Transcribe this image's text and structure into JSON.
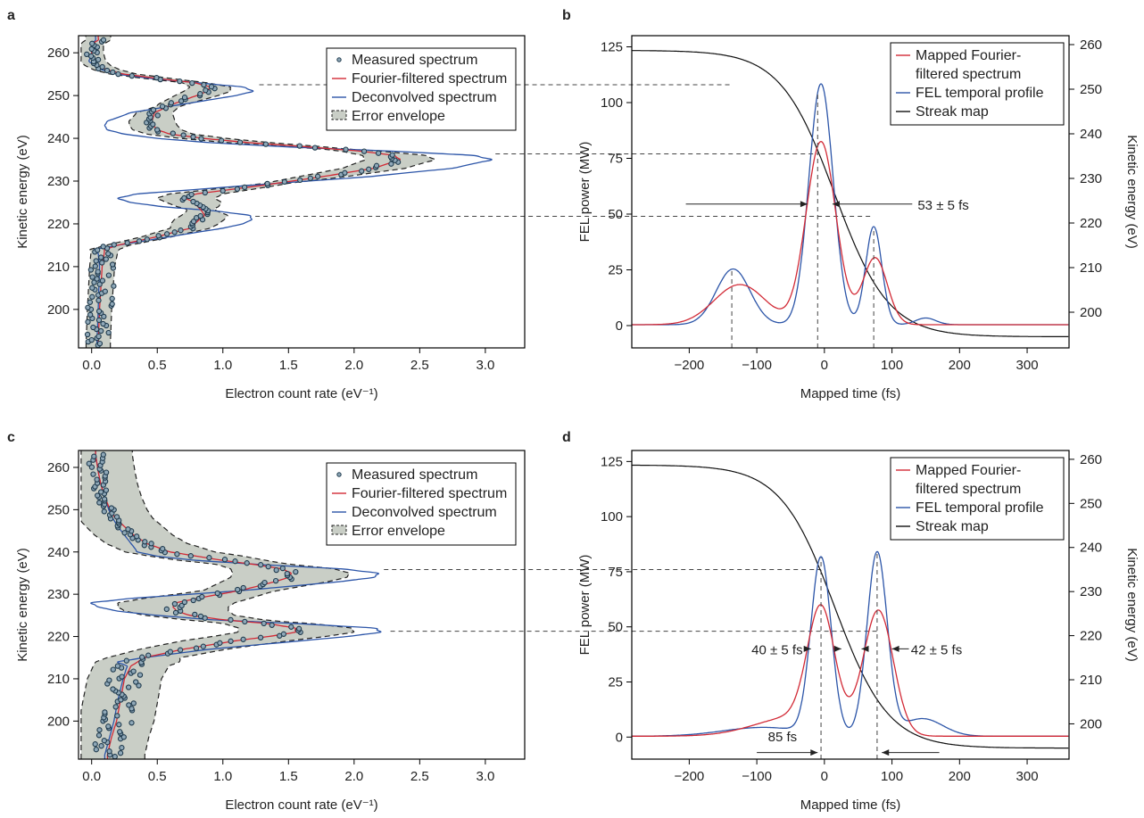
{
  "figure": {
    "panel_labels": [
      "a",
      "b",
      "c",
      "d"
    ]
  },
  "colors": {
    "measured": "#1f3a4d",
    "fourier": "#d22a36",
    "deconvolved": "#2c55a8",
    "envelope_fill": "#c9cec6",
    "streak": "#111111",
    "guide": "#444444"
  },
  "chart_data": [
    {
      "panel": "a",
      "type": "scatter",
      "xlabel": "Electron count rate (eV⁻¹)",
      "ylabel": "Kinetic energy (eV)",
      "xlim": [
        -0.1,
        3.3
      ],
      "ylim": [
        191,
        264
      ],
      "xticks": [
        0.0,
        0.5,
        1.0,
        1.5,
        2.0,
        2.5,
        3.0
      ],
      "xtick_labels": [
        "0.0",
        "0.5",
        "1.0",
        "1.5",
        "2.0",
        "2.5",
        "3.0"
      ],
      "yticks": [
        200,
        210,
        220,
        230,
        240,
        250,
        260
      ],
      "ytick_labels": [
        "200",
        "210",
        "220",
        "230",
        "240",
        "250",
        "260"
      ],
      "legend": [
        "Measured spectrum",
        "Fourier-filtered spectrum",
        "Deconvolved spectrum",
        "Error envelope"
      ],
      "legend_position": "top-right",
      "fourier": {
        "base": [
          [
            192,
            0.05
          ],
          [
            200,
            0.06
          ],
          [
            210,
            0.08
          ],
          [
            214,
            0.1
          ],
          [
            215,
            0.2
          ],
          [
            217,
            0.5
          ],
          [
            219,
            0.75
          ],
          [
            221,
            0.82
          ],
          [
            222,
            0.86
          ],
          [
            223,
            0.84
          ],
          [
            225,
            0.78
          ],
          [
            226,
            0.72
          ],
          [
            227,
            0.8
          ],
          [
            229,
            1.3
          ],
          [
            231,
            1.75
          ],
          [
            233,
            2.15
          ],
          [
            235,
            2.35
          ],
          [
            236,
            2.3
          ],
          [
            237,
            2.05
          ],
          [
            238,
            1.65
          ],
          [
            239,
            1.2
          ],
          [
            240,
            0.85
          ],
          [
            241,
            0.6
          ],
          [
            242,
            0.5
          ],
          [
            243,
            0.47
          ],
          [
            244,
            0.46
          ],
          [
            246,
            0.48
          ],
          [
            248,
            0.62
          ],
          [
            250,
            0.8
          ],
          [
            251,
            0.88
          ],
          [
            252,
            0.9
          ],
          [
            253,
            0.78
          ],
          [
            254,
            0.5
          ],
          [
            255,
            0.25
          ],
          [
            256,
            0.12
          ],
          [
            257,
            0.05
          ],
          [
            258,
            0.01
          ],
          [
            260,
            0.0
          ],
          [
            262,
            0.0
          ],
          [
            263,
            0.05
          ]
        ]
      },
      "deconvolved": {
        "base": [
          [
            192,
            0.04
          ],
          [
            200,
            0.05
          ],
          [
            210,
            0.06
          ],
          [
            213,
            0.05
          ],
          [
            214,
            0.02
          ],
          [
            215,
            0.2
          ],
          [
            217,
            0.6
          ],
          [
            219,
            1.0
          ],
          [
            220,
            1.15
          ],
          [
            221,
            1.22
          ],
          [
            222,
            1.2
          ],
          [
            223,
            0.95
          ],
          [
            224,
            0.55
          ],
          [
            225,
            0.3
          ],
          [
            226,
            0.2
          ],
          [
            227,
            0.35
          ],
          [
            229,
            1.2
          ],
          [
            231,
            2.1
          ],
          [
            233,
            2.75
          ],
          [
            235,
            3.05
          ],
          [
            236,
            2.9
          ],
          [
            237,
            2.3
          ],
          [
            238,
            1.5
          ],
          [
            239,
            0.9
          ],
          [
            240,
            0.5
          ],
          [
            241,
            0.25
          ],
          [
            242,
            0.12
          ],
          [
            243,
            0.1
          ],
          [
            244,
            0.12
          ],
          [
            246,
            0.3
          ],
          [
            248,
            0.7
          ],
          [
            250,
            1.1
          ],
          [
            251,
            1.23
          ],
          [
            252,
            1.15
          ],
          [
            253,
            0.8
          ],
          [
            254,
            0.45
          ],
          [
            255,
            0.2
          ],
          [
            256,
            0.08
          ],
          [
            257,
            0.02
          ],
          [
            258,
            -0.02
          ],
          [
            260,
            0.0
          ],
          [
            262,
            0.0
          ],
          [
            263,
            0.03
          ]
        ]
      },
      "envelope_width": 0.09,
      "measured_noise": 0.04
    },
    {
      "panel": "c",
      "type": "scatter",
      "xlabel": "Electron count rate (eV⁻¹)",
      "ylabel": "Kinetic energy (eV)",
      "xlim": [
        -0.1,
        3.3
      ],
      "ylim": [
        191,
        264
      ],
      "xticks": [
        0.0,
        0.5,
        1.0,
        1.5,
        2.0,
        2.5,
        3.0
      ],
      "xtick_labels": [
        "0.0",
        "0.5",
        "1.0",
        "1.5",
        "2.0",
        "2.5",
        "3.0"
      ],
      "yticks": [
        200,
        210,
        220,
        230,
        240,
        250,
        260
      ],
      "ytick_labels": [
        "200",
        "210",
        "220",
        "230",
        "240",
        "250",
        "260"
      ],
      "legend": [
        "Measured spectrum",
        "Fourier-filtered spectrum",
        "Deconvolved spectrum",
        "Error envelope"
      ],
      "legend_position": "top-right",
      "fourier": {
        "base": [
          [
            192,
            0.12
          ],
          [
            196,
            0.15
          ],
          [
            200,
            0.19
          ],
          [
            205,
            0.22
          ],
          [
            210,
            0.25
          ],
          [
            213,
            0.3
          ],
          [
            215,
            0.4
          ],
          [
            217,
            0.7
          ],
          [
            219,
            1.1
          ],
          [
            220,
            1.35
          ],
          [
            221,
            1.55
          ],
          [
            222,
            1.55
          ],
          [
            223,
            1.35
          ],
          [
            224,
            1.0
          ],
          [
            225,
            0.75
          ],
          [
            226,
            0.65
          ],
          [
            227,
            0.62
          ],
          [
            228,
            0.65
          ],
          [
            229,
            0.8
          ],
          [
            231,
            1.15
          ],
          [
            233,
            1.4
          ],
          [
            234,
            1.5
          ],
          [
            235,
            1.52
          ],
          [
            236,
            1.45
          ],
          [
            237,
            1.25
          ],
          [
            238,
            1.0
          ],
          [
            239,
            0.8
          ],
          [
            240,
            0.6
          ],
          [
            242,
            0.42
          ],
          [
            244,
            0.32
          ],
          [
            246,
            0.25
          ],
          [
            248,
            0.18
          ],
          [
            250,
            0.14
          ],
          [
            253,
            0.1
          ],
          [
            256,
            0.07
          ],
          [
            259,
            0.05
          ],
          [
            263,
            0.03
          ]
        ]
      },
      "deconvolved": {
        "base": [
          [
            192,
            0.1
          ],
          [
            200,
            0.17
          ],
          [
            205,
            0.2
          ],
          [
            210,
            0.24
          ],
          [
            213,
            0.27
          ],
          [
            214,
            0.2
          ],
          [
            215,
            0.4
          ],
          [
            217,
            0.9
          ],
          [
            219,
            1.6
          ],
          [
            220,
            1.95
          ],
          [
            221,
            2.2
          ],
          [
            222,
            2.15
          ],
          [
            223,
            1.6
          ],
          [
            224,
            0.9
          ],
          [
            225,
            0.5
          ],
          [
            226,
            0.2
          ],
          [
            227,
            0.05
          ],
          [
            228,
            0.0
          ],
          [
            229,
            0.3
          ],
          [
            231,
            1.2
          ],
          [
            233,
            1.9
          ],
          [
            234,
            2.15
          ],
          [
            235,
            2.18
          ],
          [
            236,
            1.9
          ],
          [
            237,
            1.3
          ],
          [
            238,
            0.8
          ],
          [
            239,
            0.5
          ],
          [
            240,
            0.35
          ],
          [
            242,
            0.3
          ],
          [
            244,
            0.25
          ],
          [
            246,
            0.2
          ],
          [
            248,
            0.16
          ],
          [
            250,
            0.13
          ],
          [
            253,
            0.1
          ],
          [
            256,
            0.07
          ],
          [
            259,
            0.05
          ],
          [
            263,
            0.03
          ]
        ]
      },
      "envelope_width": 0.28,
      "measured_noise": 0.05
    },
    {
      "panel": "b",
      "type": "line",
      "xlabel": "Mapped time (fs)",
      "ylabel": "FEL power (MW)",
      "ylabel_right": "Kinetic energy (eV)",
      "xlim": [
        -285,
        362
      ],
      "ylim": [
        -10,
        130
      ],
      "y2lim": [
        192.0,
        262.0
      ],
      "xticks": [
        -200,
        -100,
        0,
        100,
        200,
        300
      ],
      "xtick_labels": [
        "−200",
        "−100",
        "0",
        "100",
        "200",
        "300"
      ],
      "yticks": [
        0,
        25,
        50,
        75,
        100,
        125
      ],
      "ytick_labels": [
        "0",
        "25",
        "50",
        "75",
        "100",
        "125"
      ],
      "y2ticks": [
        200,
        210,
        220,
        230,
        240,
        250,
        260
      ],
      "y2tick_labels": [
        "200",
        "210",
        "220",
        "230",
        "240",
        "250",
        "260"
      ],
      "legend": [
        "Mapped Fourier-",
        "filtered spectrum",
        "FEL temporal profile",
        "Streak map"
      ],
      "legend_position": "top-right",
      "series": [
        {
          "name": "Mapped Fourier-filtered spectrum",
          "gaussians": [
            [
              18,
              -125,
              38
            ],
            [
              82,
              -5,
              22
            ],
            [
              30,
              75,
              18
            ]
          ]
        },
        {
          "name": "FEL temporal profile",
          "gaussians": [
            [
              25,
              -135,
              25
            ],
            [
              108,
              -5,
              18
            ],
            [
              44,
              73,
              12
            ],
            [
              3,
              150,
              15
            ]
          ]
        },
        {
          "name": "Streak map",
          "streak": {
            "top": 258.7,
            "bottom": 194.5,
            "center": 15,
            "width": 160
          }
        }
      ],
      "guides": {
        "vertical_x": [
          -137,
          -10,
          73
        ],
        "horizontal_energy": [
          251.0,
          235.5,
          221.5
        ]
      },
      "annotation": "53 ± 5 fs"
    },
    {
      "panel": "d",
      "type": "line",
      "xlabel": "Mapped time (fs)",
      "ylabel": "FEL power (MW)",
      "ylabel_right": "Kinetic energy (eV)",
      "xlim": [
        -285,
        362
      ],
      "ylim": [
        -10,
        130
      ],
      "y2lim": [
        192.0,
        262.0
      ],
      "xticks": [
        -200,
        -100,
        0,
        100,
        200,
        300
      ],
      "xtick_labels": [
        "−200",
        "−100",
        "0",
        "100",
        "200",
        "300"
      ],
      "yticks": [
        0,
        25,
        50,
        75,
        100,
        125
      ],
      "ytick_labels": [
        "0",
        "25",
        "50",
        "75",
        "100",
        "125"
      ],
      "y2ticks": [
        200,
        210,
        220,
        230,
        240,
        250,
        260
      ],
      "y2tick_labels": [
        "200",
        "210",
        "220",
        "230",
        "240",
        "250",
        "260"
      ],
      "legend": [
        "Mapped Fourier-",
        "filtered spectrum",
        "FEL temporal profile",
        "Streak map"
      ],
      "legend_position": "top-right",
      "series": [
        {
          "name": "Mapped Fourier-filtered spectrum",
          "gaussians": [
            [
              52,
              -5,
              20
            ],
            [
              56,
              80,
              22
            ],
            [
              9,
              -40,
              60
            ]
          ]
        },
        {
          "name": "FEL temporal profile",
          "gaussians": [
            [
              80,
              -5,
              15
            ],
            [
              83,
              78,
              15
            ],
            [
              8,
              145,
              30
            ],
            [
              4,
              -90,
              60
            ]
          ]
        },
        {
          "name": "Streak map",
          "streak": {
            "top": 258.7,
            "bottom": 194.5,
            "center": 15,
            "width": 160
          }
        }
      ],
      "guides": {
        "vertical_x": [
          -5,
          78
        ],
        "horizontal_energy": [
          235.0,
          221.0
        ]
      },
      "annotations": [
        "40 ± 5 fs",
        "42 ± 5 fs",
        "85 fs"
      ]
    }
  ]
}
